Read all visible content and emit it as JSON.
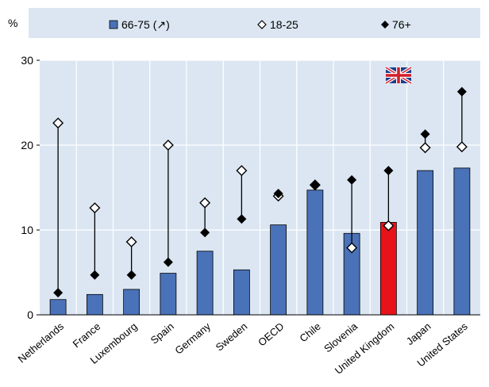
{
  "chart_data": {
    "type": "bar",
    "ylabel": "%",
    "ylim": [
      0,
      30
    ],
    "yticks": [
      0,
      10,
      20,
      30
    ],
    "grid": true,
    "legend_position": "top",
    "categories": [
      "Netherlands",
      "France",
      "Luxembourg",
      "Spain",
      "Germany",
      "Sweden",
      "OECD",
      "Chile",
      "Slovenia",
      "United Kingdom",
      "Japan",
      "United States"
    ],
    "highlight_category": "United Kingdom",
    "highlight_icon": "uk-flag-icon",
    "series": [
      {
        "name": "66-75 (↗)",
        "kind": "bar",
        "values": [
          1.8,
          2.4,
          3.0,
          4.9,
          7.5,
          5.3,
          10.6,
          14.7,
          9.6,
          10.9,
          17.0,
          17.3
        ]
      },
      {
        "name": "18-25",
        "kind": "marker-open-diamond",
        "values": [
          22.6,
          12.6,
          8.6,
          20.0,
          13.2,
          17.0,
          14.0,
          15.3,
          7.9,
          10.5,
          19.7,
          19.8
        ]
      },
      {
        "name": "76+",
        "kind": "marker-filled-diamond",
        "values": [
          2.6,
          4.7,
          4.7,
          6.2,
          9.7,
          11.3,
          14.3,
          15.3,
          15.9,
          17.0,
          21.3,
          26.3
        ]
      }
    ],
    "colors": {
      "bar": "#4a72b8",
      "bar_highlight": "#e8121a",
      "marker": "#000000",
      "legend_bg": "#dbe6f2",
      "plot_bg": "#dbe6f2",
      "grid": "#ffffff"
    }
  }
}
